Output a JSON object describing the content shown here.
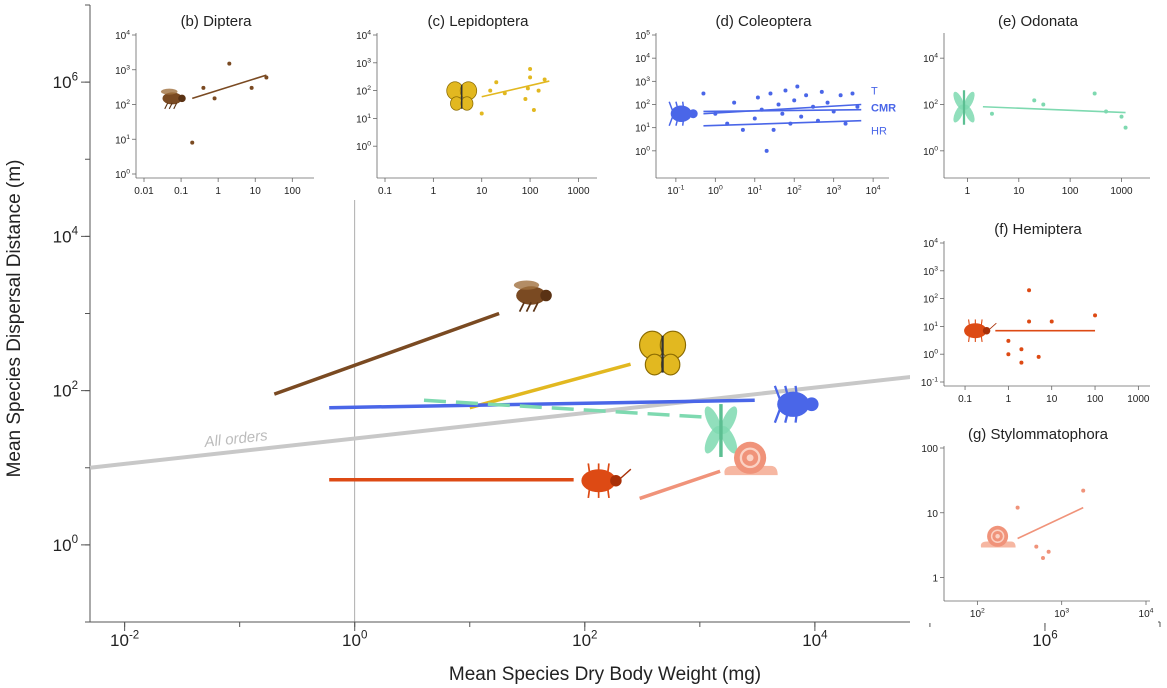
{
  "chart_data": [
    {
      "panel": "main",
      "type": "line",
      "xlabel": "Mean Species Dry Body Weight (mg)",
      "ylabel": "Mean Species Dispersal Distance (m)",
      "x_scale": "log",
      "y_scale": "log",
      "xlim": [
        0.005,
        10000000
      ],
      "ylim": [
        0.1,
        10000000
      ],
      "x_ticks": [
        0.01,
        1,
        100,
        10000,
        1000000
      ],
      "x_tick_labels": [
        "10^-2",
        "10^0",
        "10^2",
        "10^4",
        "10^6"
      ],
      "y_ticks": [
        1,
        100,
        10000,
        1000000
      ],
      "y_tick_labels": [
        "10^0",
        "10^2",
        "10^4",
        "10^6"
      ],
      "reference_x": 1,
      "series": [
        {
          "name": "All orders",
          "color": "#c8c8c8",
          "style": "solid",
          "x": [
            0.005,
            100000
          ],
          "y": [
            10,
            160
          ]
        },
        {
          "color": "#7a4a22",
          "style": "solid",
          "icon": "fly-icon",
          "x": [
            0.2,
            18
          ],
          "y": [
            90,
            1000
          ]
        },
        {
          "color": "#e2b820",
          "style": "solid",
          "icon": "butterfly-icon",
          "x": [
            10,
            250
          ],
          "y": [
            60,
            220
          ]
        },
        {
          "color": "#4a66e8",
          "style": "solid",
          "icon": "beetle-icon",
          "x": [
            0.6,
            3000
          ],
          "y": [
            60,
            75
          ]
        },
        {
          "color": "#7ed9b0",
          "style": "dashed",
          "icon": "dragonfly-icon",
          "x": [
            4,
            1200
          ],
          "y": [
            75,
            45
          ]
        },
        {
          "color": "#dd4a14",
          "style": "solid",
          "icon": "bug-icon",
          "x": [
            0.6,
            80
          ],
          "y": [
            7,
            7
          ]
        },
        {
          "color": "#f0937a",
          "style": "solid",
          "icon": "snail-icon",
          "x": [
            300,
            1500
          ],
          "y": [
            4,
            9
          ]
        }
      ]
    },
    {
      "panel": "b",
      "title": "(b) Diptera",
      "type": "scatter",
      "color": "#7a4a22",
      "icon": "fly-icon",
      "x_scale": "log",
      "y_scale": "log",
      "xlim": [
        0.01,
        300
      ],
      "ylim": [
        1,
        10000
      ],
      "x_tick_labels": [
        "0.01",
        "0.1",
        "1",
        "10",
        "100"
      ],
      "y_tick_labels": [
        "10^0",
        "10^1",
        "10^2",
        "10^3",
        "10^4"
      ],
      "points": [
        {
          "x": 0.2,
          "y": 8
        },
        {
          "x": 0.4,
          "y": 300
        },
        {
          "x": 0.8,
          "y": 150
        },
        {
          "x": 2,
          "y": 1500
        },
        {
          "x": 8,
          "y": 300
        },
        {
          "x": 20,
          "y": 600
        }
      ],
      "fit": {
        "x": [
          0.2,
          20
        ],
        "y": [
          150,
          700
        ]
      }
    },
    {
      "panel": "c",
      "title": "(c) Lepidoptera",
      "type": "scatter",
      "color": "#e2b820",
      "icon": "butterfly-icon",
      "x_scale": "log",
      "y_scale": "log",
      "xlim": [
        0.1,
        2000
      ],
      "ylim": [
        0.1,
        10000
      ],
      "x_tick_labels": [
        "0.1",
        "1",
        "10",
        "100",
        "1000"
      ],
      "y_tick_labels": [
        "10^0",
        "10^1",
        "10^2",
        "10^3",
        "10^4"
      ],
      "points": [
        {
          "x": 10,
          "y": 15
        },
        {
          "x": 15,
          "y": 100
        },
        {
          "x": 20,
          "y": 200
        },
        {
          "x": 30,
          "y": 80
        },
        {
          "x": 80,
          "y": 50
        },
        {
          "x": 90,
          "y": 120
        },
        {
          "x": 100,
          "y": 300
        },
        {
          "x": 100,
          "y": 600
        },
        {
          "x": 120,
          "y": 20
        },
        {
          "x": 150,
          "y": 100
        },
        {
          "x": 200,
          "y": 250
        }
      ],
      "fit": {
        "x": [
          10,
          250
        ],
        "y": [
          60,
          220
        ]
      }
    },
    {
      "panel": "d",
      "title": "(d) Coleoptera",
      "type": "scatter",
      "color": "#4a66e8",
      "icon": "beetle-icon",
      "x_scale": "log",
      "y_scale": "log",
      "xlim": [
        0.05,
        20000
      ],
      "ylim": [
        0.1,
        100000
      ],
      "x_tick_labels": [
        "10^-1",
        "10^0",
        "10^1",
        "10^2",
        "10^3",
        "10^4"
      ],
      "y_tick_labels": [
        "10^0",
        "10^1",
        "10^2",
        "10^3",
        "10^4",
        "10^5"
      ],
      "line_labels": [
        "T",
        "CMR",
        "HR"
      ],
      "points": [
        {
          "x": 0.5,
          "y": 300
        },
        {
          "x": 1,
          "y": 40
        },
        {
          "x": 2,
          "y": 15
        },
        {
          "x": 3,
          "y": 120
        },
        {
          "x": 5,
          "y": 8
        },
        {
          "x": 10,
          "y": 25
        },
        {
          "x": 12,
          "y": 200
        },
        {
          "x": 15,
          "y": 60
        },
        {
          "x": 20,
          "y": 1
        },
        {
          "x": 25,
          "y": 300
        },
        {
          "x": 30,
          "y": 8
        },
        {
          "x": 40,
          "y": 100
        },
        {
          "x": 50,
          "y": 40
        },
        {
          "x": 60,
          "y": 400
        },
        {
          "x": 80,
          "y": 15
        },
        {
          "x": 100,
          "y": 150
        },
        {
          "x": 120,
          "y": 600
        },
        {
          "x": 150,
          "y": 30
        },
        {
          "x": 200,
          "y": 250
        },
        {
          "x": 300,
          "y": 80
        },
        {
          "x": 400,
          "y": 20
        },
        {
          "x": 500,
          "y": 350
        },
        {
          "x": 700,
          "y": 120
        },
        {
          "x": 1000,
          "y": 50
        },
        {
          "x": 1500,
          "y": 250
        },
        {
          "x": 2000,
          "y": 15
        },
        {
          "x": 3000,
          "y": 300
        },
        {
          "x": 4000,
          "y": 80
        }
      ],
      "fits": [
        {
          "label": "T",
          "x": [
            0.5,
            5000
          ],
          "y": [
            40,
            100
          ]
        },
        {
          "label": "CMR",
          "x": [
            0.5,
            5000
          ],
          "y": [
            50,
            60
          ]
        },
        {
          "label": "HR",
          "x": [
            0.5,
            5000
          ],
          "y": [
            12,
            20
          ]
        }
      ]
    },
    {
      "panel": "e",
      "title": "(e) Odonata",
      "type": "scatter",
      "color": "#7ed9b0",
      "icon": "dragonfly-icon",
      "x_scale": "log",
      "y_scale": "log",
      "xlim": [
        0.5,
        3000
      ],
      "ylim": [
        0.1,
        100000
      ],
      "x_tick_labels": [
        "1",
        "10",
        "100",
        "1000"
      ],
      "y_tick_labels": [
        "10^0",
        "10^2",
        "10^4"
      ],
      "points": [
        {
          "x": 3,
          "y": 40
        },
        {
          "x": 20,
          "y": 150
        },
        {
          "x": 30,
          "y": 100
        },
        {
          "x": 300,
          "y": 300
        },
        {
          "x": 500,
          "y": 50
        },
        {
          "x": 1000,
          "y": 30
        },
        {
          "x": 1200,
          "y": 10
        }
      ],
      "fit": {
        "x": [
          2,
          1200
        ],
        "y": [
          80,
          45
        ]
      }
    },
    {
      "panel": "f",
      "title": "(f) Hemiptera",
      "type": "scatter",
      "color": "#dd4a14",
      "icon": "bug-icon",
      "x_scale": "log",
      "y_scale": "log",
      "xlim": [
        0.05,
        1500
      ],
      "ylim": [
        0.1,
        10000
      ],
      "x_tick_labels": [
        "0.1",
        "1",
        "10",
        "100",
        "1000"
      ],
      "y_tick_labels": [
        "10^-1",
        "10^0",
        "10^1",
        "10^2",
        "10^3",
        "10^4"
      ],
      "points": [
        {
          "x": 1,
          "y": 3
        },
        {
          "x": 1,
          "y": 1
        },
        {
          "x": 2,
          "y": 0.5
        },
        {
          "x": 2,
          "y": 1.5
        },
        {
          "x": 3,
          "y": 200
        },
        {
          "x": 3,
          "y": 15
        },
        {
          "x": 5,
          "y": 0.8
        },
        {
          "x": 10,
          "y": 15
        },
        {
          "x": 100,
          "y": 25
        }
      ],
      "fit": {
        "x": [
          0.5,
          100
        ],
        "y": [
          7,
          7
        ]
      }
    },
    {
      "panel": "g",
      "title": "(g) Stylommatophora",
      "type": "scatter",
      "color": "#f0937a",
      "icon": "snail-icon",
      "x_scale": "log",
      "y_scale": "log",
      "xlim": [
        50,
        10000
      ],
      "ylim": [
        0.5,
        100
      ],
      "x_tick_labels": [
        "10^2",
        "10^3",
        "10^4"
      ],
      "y_tick_labels": [
        "1",
        "10",
        "100"
      ],
      "points": [
        {
          "x": 300,
          "y": 12
        },
        {
          "x": 500,
          "y": 3
        },
        {
          "x": 600,
          "y": 2
        },
        {
          "x": 700,
          "y": 2.5
        },
        {
          "x": 1800,
          "y": 22
        }
      ],
      "fit": {
        "x": [
          300,
          1800
        ],
        "y": [
          4,
          12
        ]
      }
    }
  ]
}
